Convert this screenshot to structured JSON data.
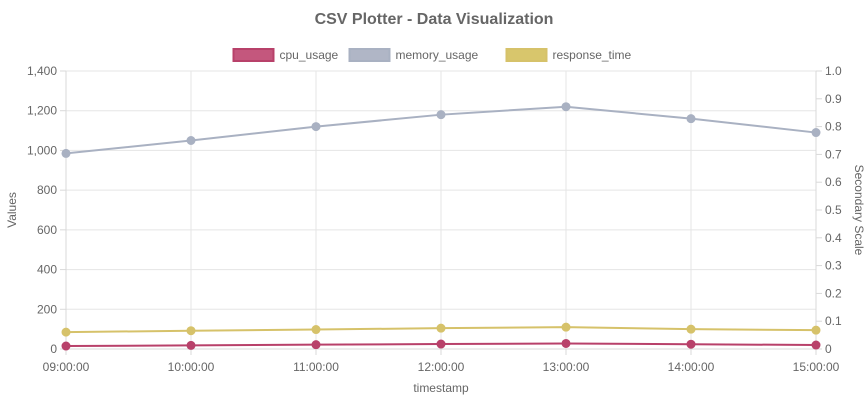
{
  "chart_data": {
    "type": "line",
    "title": "CSV Plotter - Data Visualization",
    "xlabel": "timestamp",
    "ylabel": "Values",
    "y2label": "Secondary Scale",
    "categories": [
      "09:00:00",
      "10:00:00",
      "11:00:00",
      "12:00:00",
      "13:00:00",
      "14:00:00",
      "15:00:00"
    ],
    "ylim": [
      0,
      1400
    ],
    "yticks": [
      0,
      200,
      400,
      600,
      800,
      1000,
      1200,
      1400
    ],
    "yticks_labels": [
      "0",
      "200",
      "400",
      "600",
      "800",
      "1,000",
      "1,200",
      "1,400"
    ],
    "y2lim": [
      0,
      1
    ],
    "y2ticks_labels": [
      "0",
      "0.1",
      "0.2",
      "0.3",
      "0.4",
      "0.5",
      "0.6",
      "0.7",
      "0.8",
      "0.9",
      "1.0"
    ],
    "grid": true,
    "legend_position": "top",
    "series": [
      {
        "name": "cpu_usage",
        "color": "#b8416a",
        "fill": "#c4577d",
        "values": [
          15,
          18,
          22,
          25,
          28,
          24,
          20
        ]
      },
      {
        "name": "memory_usage",
        "color": "#a9b1c2",
        "fill": "#b0b6c6",
        "values": [
          985,
          1050,
          1120,
          1180,
          1220,
          1160,
          1090
        ]
      },
      {
        "name": "response_time",
        "color": "#d6c26a",
        "fill": "#d8c66c",
        "values": [
          85,
          92,
          98,
          105,
          110,
          100,
          95
        ]
      }
    ]
  }
}
